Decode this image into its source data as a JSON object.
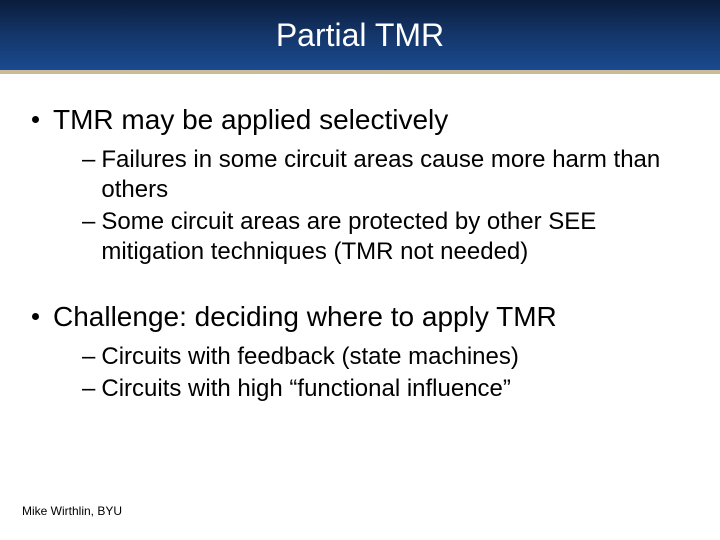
{
  "colors": {
    "title_gradient_top": "#0a1c3a",
    "title_gradient_mid": "#14366a",
    "title_gradient_bottom": "#1a4a8f",
    "title_underline": "#c9bd99",
    "title_text": "#ffffff",
    "body_text": "#000000",
    "background": "#ffffff"
  },
  "typography": {
    "title_fontsize": 32,
    "bullet_l1_fontsize": 28,
    "bullet_l2_fontsize": 24,
    "footer_fontsize": 12,
    "font_family": "Arial"
  },
  "title": "Partial TMR",
  "bullets": [
    {
      "text": "TMR may be applied selectively",
      "subs": [
        "Failures in some circuit areas cause more harm than others",
        "Some circuit areas are protected by other SEE mitigation techniques (TMR not needed)"
      ]
    },
    {
      "text": "Challenge: deciding where to apply TMR",
      "subs": [
        "Circuits with feedback (state machines)",
        "Circuits with high “functional influence”"
      ]
    }
  ],
  "footer": "Mike Wirthlin, BYU"
}
